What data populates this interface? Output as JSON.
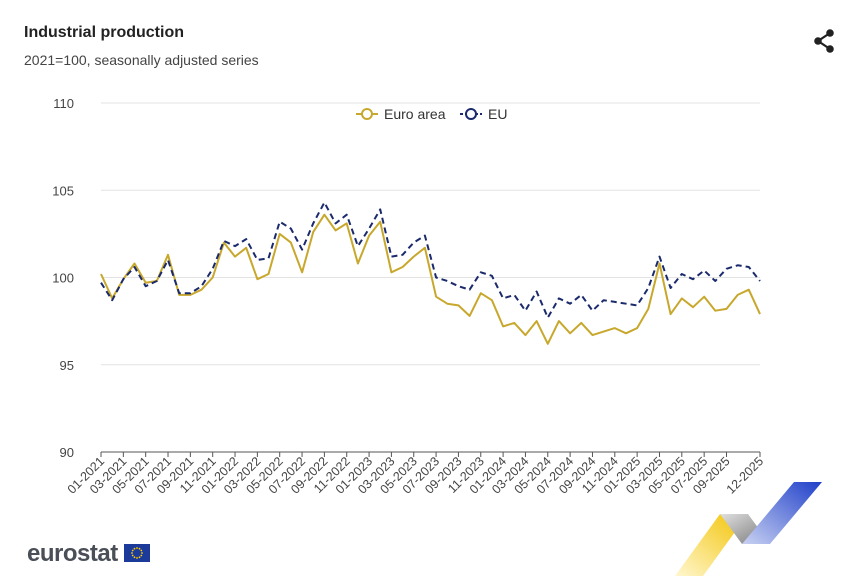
{
  "header": {
    "title": "Industrial production",
    "subtitle": "2021=100, seasonally adjusted series"
  },
  "footer": {
    "logo_text": "eurostat"
  },
  "icons": {
    "share": "share-icon",
    "eu_flag": "eu-flag-icon"
  },
  "colors": {
    "euro_area": "#c8a82c",
    "eu": "#1a2a6c",
    "grid": "#e3e3e3",
    "axis_text": "#444444"
  },
  "chart_data": {
    "type": "line",
    "title": "Industrial production",
    "subtitle": "2021=100, seasonally adjusted series",
    "xlabel": "",
    "ylabel": "",
    "ylim": [
      90,
      110
    ],
    "yticks": [
      90,
      95,
      100,
      105,
      110
    ],
    "grid": true,
    "legend_position": "top-center",
    "x_tick_labels": [
      "01-2021",
      "03-2021",
      "05-2021",
      "07-2021",
      "09-2021",
      "11-2021",
      "01-2022",
      "03-2022",
      "05-2022",
      "07-2022",
      "09-2022",
      "11-2022",
      "01-2023",
      "03-2023",
      "05-2023",
      "07-2023",
      "09-2023",
      "11-2023",
      "01-2024",
      "03-2024",
      "05-2024",
      "07-2024",
      "09-2024",
      "11-2024",
      "01-2025",
      "03-2025",
      "05-2025",
      "07-2025",
      "09-2025",
      "12-2025"
    ],
    "series": [
      {
        "name": "Euro area",
        "style": "solid",
        "values": [
          100.2,
          98.8,
          99.9,
          100.8,
          99.7,
          99.8,
          101.3,
          99.0,
          99.0,
          99.3,
          100.0,
          102.0,
          101.2,
          101.7,
          99.9,
          100.2,
          102.5,
          102.0,
          100.3,
          102.6,
          103.6,
          102.7,
          103.1,
          100.8,
          102.4,
          103.2,
          100.3,
          100.6,
          101.2,
          101.7,
          98.9,
          98.5,
          98.4,
          97.8,
          99.1,
          98.7,
          97.2,
          97.4,
          96.7,
          97.5,
          96.2,
          97.5,
          96.8,
          97.4,
          96.7,
          96.9,
          97.1,
          96.8,
          97.1,
          98.2,
          100.8,
          97.9,
          98.8,
          98.3,
          98.9,
          98.1,
          98.2,
          99.0,
          99.3,
          97.9
        ]
      },
      {
        "name": "EU",
        "style": "dashed",
        "values": [
          99.7,
          98.7,
          99.9,
          100.6,
          99.5,
          99.8,
          101.0,
          99.1,
          99.1,
          99.5,
          100.5,
          102.1,
          101.8,
          102.2,
          101.0,
          101.1,
          103.2,
          102.8,
          101.6,
          103.1,
          104.3,
          103.1,
          103.6,
          101.8,
          102.8,
          103.9,
          101.2,
          101.3,
          102.0,
          102.4,
          100.0,
          99.8,
          99.5,
          99.3,
          100.3,
          100.1,
          98.8,
          99.0,
          98.1,
          99.2,
          97.7,
          98.8,
          98.5,
          99.0,
          98.1,
          98.7,
          98.6,
          98.5,
          98.4,
          99.4,
          101.2,
          99.4,
          100.2,
          99.9,
          100.4,
          99.8,
          100.5,
          100.7,
          100.6,
          99.8
        ]
      }
    ]
  }
}
